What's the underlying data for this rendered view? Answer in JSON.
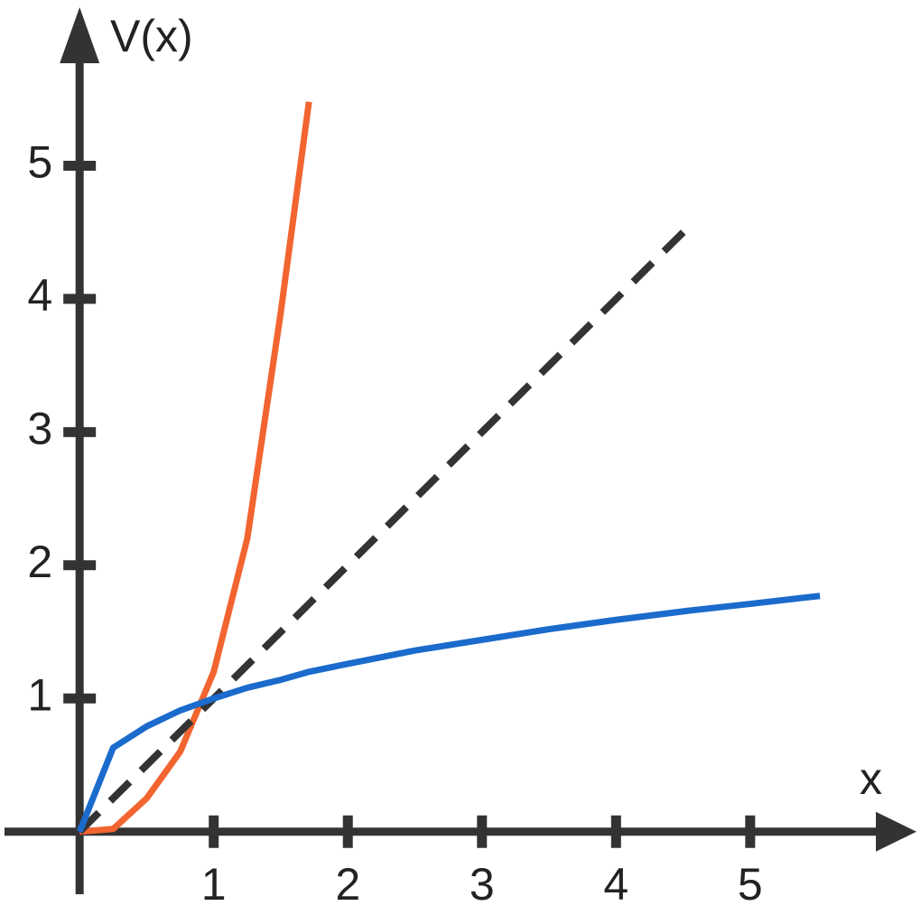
{
  "chart_data": {
    "type": "line",
    "x_label": "x",
    "y_label": "V(x)",
    "x": [
      0,
      0.25,
      0.5,
      0.75,
      1,
      1.25,
      1.5,
      1.71,
      2,
      2.5,
      3,
      3.5,
      4,
      4.55,
      5,
      5.52
    ],
    "series": [
      {
        "color": "#f26430",
        "dashed": false,
        "values": [
          0,
          0.02,
          0.25,
          0.6,
          1.2,
          2.2,
          3.9,
          5.48,
          null,
          null,
          null,
          null,
          null,
          null,
          null,
          null
        ]
      },
      {
        "color": "#333333",
        "dashed": true,
        "values": [
          0,
          0.25,
          0.5,
          0.75,
          1,
          1.25,
          1.5,
          1.71,
          2,
          2.5,
          3,
          3.5,
          4,
          4.55,
          null,
          null
        ]
      },
      {
        "color": "#1a6bcc",
        "dashed": false,
        "values": [
          0,
          0.63,
          0.79,
          0.91,
          1,
          1.08,
          1.14,
          1.2,
          1.26,
          1.36,
          1.44,
          1.52,
          1.59,
          1.66,
          1.71,
          1.77
        ]
      }
    ],
    "xlim": [
      -0.56,
      6.24
    ],
    "ylim": [
      -0.47,
      6.19
    ],
    "xticks": [
      1,
      2,
      3,
      4,
      5
    ],
    "yticks": [
      1,
      2,
      3,
      4,
      5
    ],
    "grid": false
  }
}
